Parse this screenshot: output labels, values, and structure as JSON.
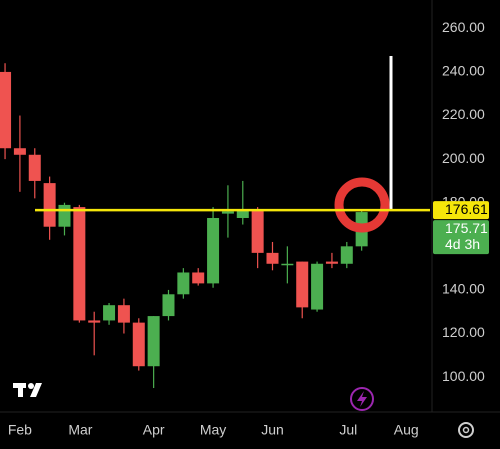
{
  "chart_data": {
    "type": "candlestick",
    "up_color": "#4caf50",
    "down_color": "#ef5350",
    "open": [
      240,
      205,
      202,
      189,
      169,
      178,
      126,
      126,
      133,
      125,
      105,
      128,
      138,
      148,
      143,
      175,
      173,
      177,
      157,
      152,
      153,
      131,
      153,
      152,
      160
    ],
    "close": [
      205,
      202,
      190,
      169,
      179,
      126,
      125,
      133,
      125,
      105,
      128,
      138,
      148,
      143,
      173,
      176,
      177,
      157,
      152,
      152,
      132,
      152,
      152,
      160,
      175.71
    ],
    "high": [
      244,
      220,
      205,
      192,
      180,
      179,
      130,
      134,
      136,
      127,
      128,
      140,
      150,
      150,
      178,
      188,
      190,
      178,
      162,
      160,
      153,
      153,
      157,
      162,
      177
    ],
    "low": [
      200,
      185,
      182,
      163,
      165,
      125,
      110,
      124,
      120,
      103,
      95,
      126,
      136,
      142,
      141,
      164,
      170,
      150,
      149,
      143,
      127,
      130,
      150,
      150,
      158
    ],
    "ylim": [
      84,
      273
    ],
    "yticks": [
      {
        "value": 100,
        "label": "100.00"
      },
      {
        "value": 120,
        "label": "120.00"
      },
      {
        "value": 140,
        "label": "140.00"
      },
      {
        "value": 160,
        "label": "160.00"
      },
      {
        "value": 180,
        "label": "180.00"
      },
      {
        "value": 200,
        "label": "200.00"
      },
      {
        "value": 220,
        "label": "220.00"
      },
      {
        "value": 240,
        "label": "240.00"
      },
      {
        "value": 260,
        "label": "260.00"
      }
    ],
    "xlim": [
      -0.34,
      28.6
    ],
    "xticks": [
      {
        "value": 1.0,
        "label": "Feb"
      },
      {
        "value": 5.07,
        "label": "Mar"
      },
      {
        "value": 10,
        "label": "Apr"
      },
      {
        "value": 14,
        "label": "May"
      },
      {
        "value": 18,
        "label": "Jun"
      },
      {
        "value": 23.1,
        "label": "Jul"
      },
      {
        "value": 27,
        "label": "Aug"
      }
    ],
    "horizontal_line": {
      "value": 176.61,
      "color": "#f5e60a"
    },
    "price_labels": [
      {
        "value": 176.61,
        "label": "176.61",
        "color": "#f5e60a",
        "text_color": "#000000"
      },
      {
        "value": 175.71,
        "label": "175.71",
        "sublabel": "4d 3h",
        "color": "#4caf50",
        "text_color": "#ffffff"
      }
    ]
  }
}
